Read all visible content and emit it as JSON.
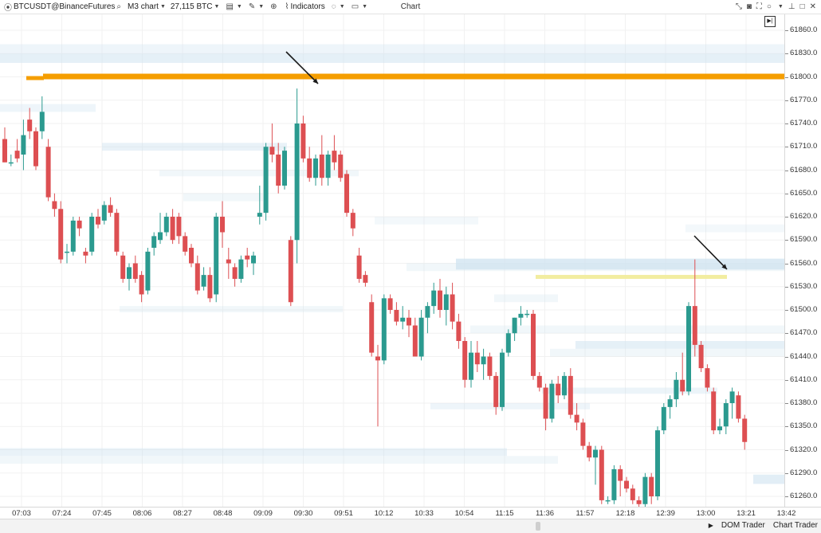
{
  "toolbar": {
    "symbol": "BTCUSDT@BinanceFutures",
    "timeframe": "M3 chart",
    "volume_label": "27,115 BTC",
    "indicators_label": "Indicators",
    "window_title": "Chart"
  },
  "status_bar": {
    "dom_trader": "DOM Trader",
    "chart_trader": "Chart Trader"
  },
  "price_axis": {
    "labels": [
      "61860.0",
      "61830.0",
      "61800.0",
      "61770.0",
      "61740.0",
      "61710.0",
      "61680.0",
      "61650.0",
      "61620.0",
      "61590.0",
      "61560.0",
      "61530.0",
      "61500.0",
      "61470.0",
      "61440.0",
      "61410.0",
      "61380.0",
      "61350.0",
      "61320.0",
      "61290.0",
      "61260.0"
    ]
  },
  "time_axis": {
    "labels": [
      "07:03",
      "07:24",
      "07:45",
      "08:06",
      "08:27",
      "08:48",
      "09:09",
      "09:30",
      "09:51",
      "10:12",
      "10:33",
      "10:54",
      "11:15",
      "11:36",
      "11:57",
      "12:18",
      "12:39",
      "13:00",
      "13:21",
      "13:42"
    ]
  },
  "colors": {
    "bull": "#2b9a8f",
    "bear": "#dd4f52",
    "heat_light": "#d6e8f3",
    "orange_level": "#f59e00",
    "yellow_level": "#f2eda0"
  },
  "chart_data": {
    "type": "candlestick",
    "ylim": [
      61245,
      61870
    ],
    "candles": [
      {
        "o": 61720,
        "h": 61735,
        "l": 61690,
        "c": 61690
      },
      {
        "o": 61690,
        "h": 61700,
        "l": 61685,
        "c": 61690
      },
      {
        "o": 61705,
        "h": 61720,
        "l": 61690,
        "c": 61695
      },
      {
        "o": 61700,
        "h": 61745,
        "l": 61680,
        "c": 61725
      },
      {
        "o": 61745,
        "h": 61760,
        "l": 61720,
        "c": 61730
      },
      {
        "o": 61730,
        "h": 61735,
        "l": 61680,
        "c": 61685
      },
      {
        "o": 61730,
        "h": 61775,
        "l": 61720,
        "c": 61755
      },
      {
        "o": 61710,
        "h": 61720,
        "l": 61640,
        "c": 61645
      },
      {
        "o": 61640,
        "h": 61650,
        "l": 61620,
        "c": 61630
      },
      {
        "o": 61630,
        "h": 61640,
        "l": 61560,
        "c": 61565
      },
      {
        "o": 61575,
        "h": 61585,
        "l": 61560,
        "c": 61575
      },
      {
        "o": 61575,
        "h": 61620,
        "l": 61570,
        "c": 61615
      },
      {
        "o": 61615,
        "h": 61620,
        "l": 61595,
        "c": 61605
      },
      {
        "o": 61575,
        "h": 61580,
        "l": 61560,
        "c": 61570
      },
      {
        "o": 61575,
        "h": 61625,
        "l": 61570,
        "c": 61620
      },
      {
        "o": 61620,
        "h": 61630,
        "l": 61605,
        "c": 61610
      },
      {
        "o": 61615,
        "h": 61640,
        "l": 61610,
        "c": 61635
      },
      {
        "o": 61635,
        "h": 61645,
        "l": 61620,
        "c": 61625
      },
      {
        "o": 61625,
        "h": 61630,
        "l": 61570,
        "c": 61575
      },
      {
        "o": 61570,
        "h": 61575,
        "l": 61535,
        "c": 61540
      },
      {
        "o": 61540,
        "h": 61560,
        "l": 61525,
        "c": 61555
      },
      {
        "o": 61560,
        "h": 61570,
        "l": 61535,
        "c": 61540
      },
      {
        "o": 61545,
        "h": 61550,
        "l": 61510,
        "c": 61520
      },
      {
        "o": 61525,
        "h": 61580,
        "l": 61520,
        "c": 61575
      },
      {
        "o": 61580,
        "h": 61600,
        "l": 61570,
        "c": 61595
      },
      {
        "o": 61590,
        "h": 61625,
        "l": 61585,
        "c": 61600
      },
      {
        "o": 61600,
        "h": 61625,
        "l": 61595,
        "c": 61620
      },
      {
        "o": 61620,
        "h": 61630,
        "l": 61585,
        "c": 61590
      },
      {
        "o": 61620,
        "h": 61625,
        "l": 61585,
        "c": 61595
      },
      {
        "o": 61595,
        "h": 61600,
        "l": 61570,
        "c": 61575
      },
      {
        "o": 61580,
        "h": 61585,
        "l": 61555,
        "c": 61560
      },
      {
        "o": 61560,
        "h": 61570,
        "l": 61520,
        "c": 61525
      },
      {
        "o": 61530,
        "h": 61555,
        "l": 61525,
        "c": 61545
      },
      {
        "o": 61545,
        "h": 61555,
        "l": 61510,
        "c": 61515
      },
      {
        "o": 61520,
        "h": 61625,
        "l": 61510,
        "c": 61620
      },
      {
        "o": 61620,
        "h": 61640,
        "l": 61580,
        "c": 61600
      },
      {
        "o": 61565,
        "h": 61580,
        "l": 61540,
        "c": 61560
      },
      {
        "o": 61555,
        "h": 61560,
        "l": 61530,
        "c": 61540
      },
      {
        "o": 61540,
        "h": 61570,
        "l": 61535,
        "c": 61565
      },
      {
        "o": 61570,
        "h": 61580,
        "l": 61555,
        "c": 61565
      },
      {
        "o": 61560,
        "h": 61575,
        "l": 61545,
        "c": 61570
      },
      {
        "o": 61620,
        "h": 61660,
        "l": 61610,
        "c": 61625
      },
      {
        "o": 61625,
        "h": 61715,
        "l": 61615,
        "c": 61710
      },
      {
        "o": 61710,
        "h": 61740,
        "l": 61690,
        "c": 61700
      },
      {
        "o": 61700,
        "h": 61715,
        "l": 61650,
        "c": 61660
      },
      {
        "o": 61660,
        "h": 61710,
        "l": 61655,
        "c": 61705
      },
      {
        "o": 61590,
        "h": 61595,
        "l": 61505,
        "c": 61510
      },
      {
        "o": 61590,
        "h": 61785,
        "l": 61560,
        "c": 61740
      },
      {
        "o": 61740,
        "h": 61750,
        "l": 61690,
        "c": 61695
      },
      {
        "o": 61695,
        "h": 61710,
        "l": 61665,
        "c": 61670
      },
      {
        "o": 61670,
        "h": 61700,
        "l": 61660,
        "c": 61695
      },
      {
        "o": 61700,
        "h": 61725,
        "l": 61660,
        "c": 61670
      },
      {
        "o": 61670,
        "h": 61705,
        "l": 61660,
        "c": 61700
      },
      {
        "o": 61705,
        "h": 61725,
        "l": 61680,
        "c": 61690
      },
      {
        "o": 61700,
        "h": 61705,
        "l": 61665,
        "c": 61670
      },
      {
        "o": 61675,
        "h": 61680,
        "l": 61620,
        "c": 61625
      },
      {
        "o": 61625,
        "h": 61630,
        "l": 61595,
        "c": 61605
      },
      {
        "o": 61570,
        "h": 61580,
        "l": 61535,
        "c": 61540
      },
      {
        "o": 61545,
        "h": 61550,
        "l": 61530,
        "c": 61535
      },
      {
        "o": 61510,
        "h": 61520,
        "l": 61440,
        "c": 61445
      },
      {
        "o": 61440,
        "h": 61455,
        "l": 61350,
        "c": 61435
      },
      {
        "o": 61435,
        "h": 61520,
        "l": 61430,
        "c": 61515
      },
      {
        "o": 61515,
        "h": 61520,
        "l": 61495,
        "c": 61500
      },
      {
        "o": 61500,
        "h": 61510,
        "l": 61480,
        "c": 61485
      },
      {
        "o": 61485,
        "h": 61505,
        "l": 61475,
        "c": 61490
      },
      {
        "o": 61490,
        "h": 61500,
        "l": 61465,
        "c": 61480
      },
      {
        "o": 61480,
        "h": 61490,
        "l": 61440,
        "c": 61440
      },
      {
        "o": 61440,
        "h": 61500,
        "l": 61435,
        "c": 61490
      },
      {
        "o": 61490,
        "h": 61510,
        "l": 61470,
        "c": 61505
      },
      {
        "o": 61505,
        "h": 61535,
        "l": 61495,
        "c": 61525
      },
      {
        "o": 61525,
        "h": 61540,
        "l": 61490,
        "c": 61500
      },
      {
        "o": 61500,
        "h": 61530,
        "l": 61480,
        "c": 61520
      },
      {
        "o": 61520,
        "h": 61535,
        "l": 61475,
        "c": 61485
      },
      {
        "o": 61485,
        "h": 61495,
        "l": 61450,
        "c": 61460
      },
      {
        "o": 61460,
        "h": 61465,
        "l": 61400,
        "c": 61410
      },
      {
        "o": 61410,
        "h": 61460,
        "l": 61400,
        "c": 61445
      },
      {
        "o": 61445,
        "h": 61460,
        "l": 61420,
        "c": 61430
      },
      {
        "o": 61430,
        "h": 61450,
        "l": 61410,
        "c": 61440
      },
      {
        "o": 61440,
        "h": 61445,
        "l": 61410,
        "c": 61415
      },
      {
        "o": 61415,
        "h": 61420,
        "l": 61365,
        "c": 61375
      },
      {
        "o": 61375,
        "h": 61450,
        "l": 61370,
        "c": 61445
      },
      {
        "o": 61445,
        "h": 61475,
        "l": 61440,
        "c": 61470
      },
      {
        "o": 61470,
        "h": 61490,
        "l": 61460,
        "c": 61490
      },
      {
        "o": 61490,
        "h": 61505,
        "l": 61480,
        "c": 61495
      },
      {
        "o": 61495,
        "h": 61500,
        "l": 61490,
        "c": 61495
      },
      {
        "o": 61495,
        "h": 61500,
        "l": 61410,
        "c": 61415
      },
      {
        "o": 61415,
        "h": 61420,
        "l": 61395,
        "c": 61400
      },
      {
        "o": 61400,
        "h": 61405,
        "l": 61345,
        "c": 61360
      },
      {
        "o": 61360,
        "h": 61410,
        "l": 61355,
        "c": 61405
      },
      {
        "o": 61405,
        "h": 61415,
        "l": 61380,
        "c": 61390
      },
      {
        "o": 61390,
        "h": 61420,
        "l": 61385,
        "c": 61415
      },
      {
        "o": 61415,
        "h": 61425,
        "l": 61360,
        "c": 61365
      },
      {
        "o": 61365,
        "h": 61380,
        "l": 61345,
        "c": 61355
      },
      {
        "o": 61355,
        "h": 61360,
        "l": 61320,
        "c": 61325
      },
      {
        "o": 61325,
        "h": 61330,
        "l": 61305,
        "c": 61310
      },
      {
        "o": 61310,
        "h": 61325,
        "l": 61275,
        "c": 61320
      },
      {
        "o": 61320,
        "h": 61325,
        "l": 61250,
        "c": 61255
      },
      {
        "o": 61255,
        "h": 61260,
        "l": 61250,
        "c": 61255
      },
      {
        "o": 61255,
        "h": 61300,
        "l": 61250,
        "c": 61295
      },
      {
        "o": 61295,
        "h": 61300,
        "l": 61260,
        "c": 61280
      },
      {
        "o": 61280,
        "h": 61285,
        "l": 61265,
        "c": 61270
      },
      {
        "o": 61270,
        "h": 61275,
        "l": 61250,
        "c": 61255
      },
      {
        "o": 61255,
        "h": 61260,
        "l": 61245,
        "c": 61250
      },
      {
        "o": 61250,
        "h": 61290,
        "l": 61245,
        "c": 61285
      },
      {
        "o": 61285,
        "h": 61290,
        "l": 61250,
        "c": 61260
      },
      {
        "o": 61260,
        "h": 61350,
        "l": 61255,
        "c": 61345
      },
      {
        "o": 61345,
        "h": 61380,
        "l": 61340,
        "c": 61375
      },
      {
        "o": 61375,
        "h": 61390,
        "l": 61360,
        "c": 61385
      },
      {
        "o": 61385,
        "h": 61420,
        "l": 61375,
        "c": 61410
      },
      {
        "o": 61410,
        "h": 61445,
        "l": 61390,
        "c": 61395
      },
      {
        "o": 61395,
        "h": 61510,
        "l": 61390,
        "c": 61505
      },
      {
        "o": 61505,
        "h": 61565,
        "l": 61440,
        "c": 61455
      },
      {
        "o": 61455,
        "h": 61460,
        "l": 61420,
        "c": 61425
      },
      {
        "o": 61425,
        "h": 61430,
        "l": 61395,
        "c": 61400
      },
      {
        "o": 61395,
        "h": 61400,
        "l": 61340,
        "c": 61345
      },
      {
        "o": 61345,
        "h": 61360,
        "l": 61340,
        "c": 61350
      },
      {
        "o": 61350,
        "h": 61385,
        "l": 61340,
        "c": 61380
      },
      {
        "o": 61380,
        "h": 61400,
        "l": 61360,
        "c": 61395
      },
      {
        "o": 61390,
        "h": 61395,
        "l": 61355,
        "c": 61360
      },
      {
        "o": 61360,
        "h": 61365,
        "l": 61320,
        "c": 61330
      }
    ],
    "levels": [
      {
        "price": 61800,
        "style": "orange"
      },
      {
        "price": 61543,
        "style": "yellow"
      }
    ]
  }
}
